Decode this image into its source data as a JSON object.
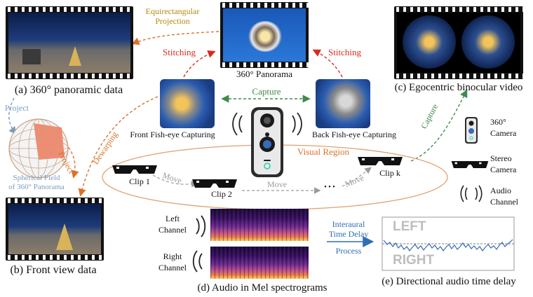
{
  "labels": {
    "panoramic_data": "(a) 360° panoramic data",
    "panorama": "360° Panorama",
    "egocentric": "(c) Egocentric binocular video",
    "equirect": "Equirectangular",
    "projection": "Projection",
    "stitching_left": "Stitching",
    "stitching_right": "Stitching",
    "capture_top": "Capture",
    "capture_right": "Capture",
    "project_left": "Project",
    "project_right": "Project",
    "dewarping": "Dewarping",
    "front_fisheye": "Front Fish-eye Capturing",
    "back_fisheye": "Back Fish-eye Capturing",
    "visual_region": "Visual Region",
    "spherical_1": "Spherical Field",
    "spherical_2": "of 360° Panorama",
    "front_view": "(b) Front view data",
    "clip1": "Clip 1",
    "clip2": "Clip 2",
    "clipk": "Clip k",
    "move1": "Move",
    "move2": "Move",
    "move3": "Move",
    "ellipsis": "• • •",
    "left_channel_1": "Left",
    "left_channel_2": "Channel",
    "right_channel_1": "Right",
    "right_channel_2": "Channel",
    "audio_mel": "(d) Audio in Mel spectrograms",
    "interaural_1": "Interaural",
    "interaural_2": "Time Delay",
    "process": "Process",
    "directional": "(e) Directional audio time delay",
    "left_big": "LEFT",
    "right_big": "RIGHT",
    "legend_360_1": "360°",
    "legend_360_2": "Camera",
    "legend_stereo_1": "Stereo",
    "legend_stereo_2": "Camera",
    "legend_audio_1": "Audio",
    "legend_audio_2": "Channel"
  },
  "colors": {
    "orange": "#d9722a",
    "red": "#d62b1f",
    "green": "#3f8a4e",
    "blue_gray": "#7a9cc0",
    "gold": "#b8860b",
    "gray": "#9a9a9a",
    "ellipse": "#e0a070",
    "process_blue": "#2f6fb3"
  },
  "icons": [
    "wave-icon",
    "360-camera-icon",
    "stereo-glasses-icon",
    "globe-icon",
    "spectrogram",
    "time-delay-plot"
  ]
}
